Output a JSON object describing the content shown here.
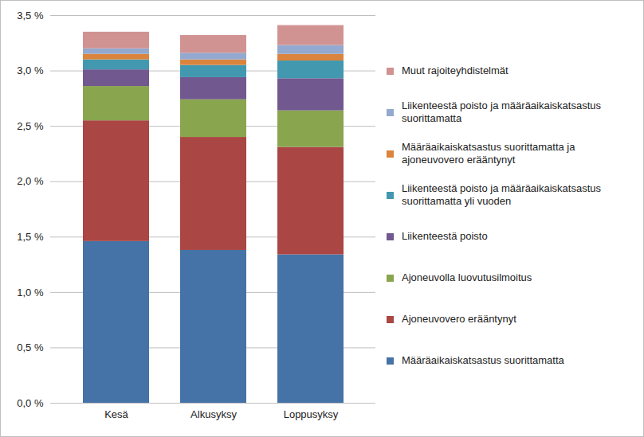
{
  "chart_data": {
    "type": "bar",
    "stacked": true,
    "grid": true,
    "legend": "right",
    "categories": [
      "Kesä",
      "Alkusyksy",
      "Loppusyksy"
    ],
    "ylim": [
      0,
      3.5
    ],
    "yticks": [
      {
        "value": 0,
        "label": "0,0 %"
      },
      {
        "value": 0.5,
        "label": "0,5 %"
      },
      {
        "value": 1,
        "label": "1,0 %"
      },
      {
        "value": 1.5,
        "label": "1,5 %"
      },
      {
        "value": 2,
        "label": "2,0 %"
      },
      {
        "value": 2.5,
        "label": "2,5 %"
      },
      {
        "value": 3,
        "label": "3,0 %"
      },
      {
        "value": 3.5,
        "label": "3,5 %"
      }
    ],
    "series": [
      {
        "name": "Määräaikaiskatsastus suorittamatta",
        "color": "#4573a7",
        "values": [
          1.46,
          1.38,
          1.34
        ]
      },
      {
        "name": "Ajoneuvovero erääntynyt",
        "color": "#aa4643",
        "values": [
          1.09,
          1.02,
          0.97
        ]
      },
      {
        "name": "Ajoneuvolla luovutusilmoitus",
        "color": "#89a54e",
        "values": [
          0.31,
          0.34,
          0.33
        ]
      },
      {
        "name": "Liikenteestä poisto",
        "color": "#71588f",
        "values": [
          0.15,
          0.2,
          0.29
        ]
      },
      {
        "name": "Liikenteestä poisto ja määräaikaiskatsastus suorittamatta yli vuoden",
        "color": "#4198af",
        "values": [
          0.09,
          0.11,
          0.16
        ]
      },
      {
        "name": "Määräaikaiskatsastus suorittamatta ja ajoneuvovero erääntynyt",
        "color": "#db843d",
        "values": [
          0.05,
          0.05,
          0.06
        ]
      },
      {
        "name": "Liikenteestä poisto ja määräaikaiskatsastus suorittamatta",
        "color": "#93a9cf",
        "values": [
          0.05,
          0.06,
          0.08
        ]
      },
      {
        "name": "Muut rajoiteyhdistelmät",
        "color": "#d19392",
        "values": [
          0.15,
          0.16,
          0.18
        ]
      }
    ]
  }
}
